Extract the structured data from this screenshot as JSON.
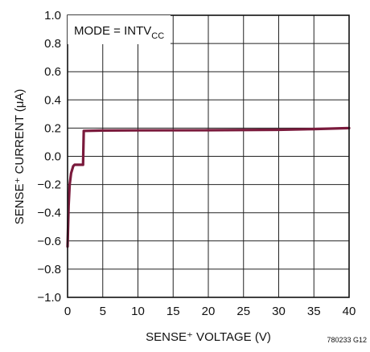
{
  "chart_data": {
    "type": "line",
    "title": "",
    "xlabel": "SENSE⁺ VOLTAGE (V)",
    "ylabel": "SENSE⁺ CURRENT (μA)",
    "xlim": [
      0,
      40
    ],
    "ylim": [
      -1.0,
      1.0
    ],
    "x_ticks": [
      "0",
      "5",
      "10",
      "15",
      "20",
      "25",
      "30",
      "35",
      "40"
    ],
    "y_ticks": [
      "1.0",
      "0.8",
      "0.6",
      "0.4",
      "0.2",
      "0.0",
      "−0.2",
      "−0.4",
      "−0.6",
      "−0.8",
      "−1.0"
    ],
    "grid": true,
    "annotation_main": "MODE = INTV",
    "annotation_sub": "CC",
    "figure_id": "780233 G12",
    "line_color": "#7a1a3c",
    "series": [
      {
        "x": [
          0,
          0.15,
          0.3,
          0.5,
          0.8,
          1.0,
          1.5,
          2.0,
          2.2,
          2.3,
          5,
          10,
          20,
          30,
          35,
          40
        ],
        "y": [
          -0.64,
          -0.35,
          -0.2,
          -0.12,
          -0.07,
          -0.06,
          -0.06,
          -0.06,
          -0.06,
          0.18,
          0.183,
          0.184,
          0.185,
          0.188,
          0.193,
          0.2
        ]
      }
    ]
  }
}
